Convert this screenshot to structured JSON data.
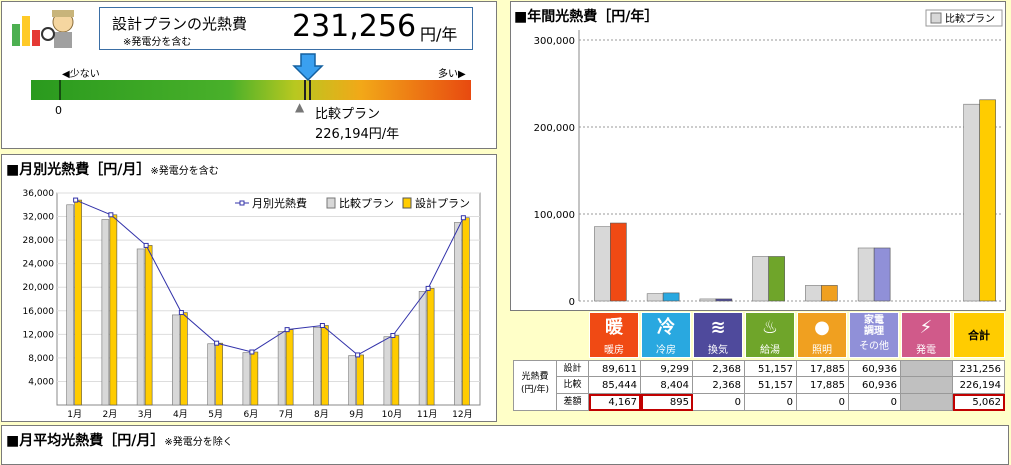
{
  "summary": {
    "title": "設計プランの光熱費",
    "note": "※発電分を含む",
    "value": "231,256",
    "unit": "円/年",
    "scale_low": "少ない",
    "scale_high": "多い",
    "scale_zero": "0",
    "compare_label": "比較プラン",
    "compare_value": "226,194円/年"
  },
  "monthly": {
    "title": "■月別光熱費［円/月］",
    "note": "※発電分を含む"
  },
  "annual": {
    "title": "■年間光熱費［円/年］",
    "legend": "比較プラン"
  },
  "avg": {
    "title": "■月平均光熱費［円/月］",
    "note": "※発電分を除く"
  },
  "table": {
    "row_group": [
      "光熱費",
      "(円/年)"
    ],
    "row_labels": [
      "設計",
      "比較",
      "差額"
    ],
    "total_header": "合計",
    "categories": [
      {
        "label": "暖房",
        "icon": "暖",
        "color": "#f04a14"
      },
      {
        "label": "冷房",
        "icon": "冷",
        "color": "#29a8e0"
      },
      {
        "label": "換気",
        "icon": "≋",
        "color": "#4f4a9c"
      },
      {
        "label": "給湯",
        "icon": "♨",
        "color": "#6fa52a"
      },
      {
        "label": "照明",
        "icon": "●",
        "color": "#f0a020"
      },
      {
        "label": "その他",
        "icon": "家電調理",
        "color": "#9090d8"
      },
      {
        "label": "発電",
        "icon": "⚡",
        "color": "#d05a8a"
      }
    ],
    "design": [
      "89,611",
      "9,299",
      "2,368",
      "51,157",
      "17,885",
      "60,936",
      "",
      "231,256"
    ],
    "compare": [
      "85,444",
      "8,404",
      "2,368",
      "51,157",
      "17,885",
      "60,936",
      "",
      "226,194"
    ],
    "diff": [
      "4,167",
      "895",
      "0",
      "0",
      "0",
      "0",
      "",
      "5,062"
    ]
  },
  "colors": {
    "design": "#ffcc00",
    "compare": "#d8d8d8",
    "line": "#3333aa"
  },
  "chart_data": [
    {
      "type": "bar",
      "title": "月別光熱費［円/月］",
      "categories": [
        "1月",
        "2月",
        "3月",
        "4月",
        "5月",
        "6月",
        "7月",
        "8月",
        "9月",
        "10月",
        "11月",
        "12月"
      ],
      "series": [
        {
          "name": "月別光熱費",
          "type": "line",
          "values": [
            34800,
            32300,
            27100,
            15700,
            10500,
            9000,
            12800,
            13500,
            8500,
            11800,
            19800,
            31800
          ]
        },
        {
          "name": "比較プラン",
          "values": [
            34000,
            31500,
            26500,
            15300,
            10400,
            8900,
            12500,
            13200,
            8400,
            11600,
            19300,
            31000
          ]
        },
        {
          "name": "設計プラン",
          "values": [
            34800,
            32300,
            27100,
            15700,
            10500,
            9000,
            12800,
            13500,
            8500,
            11800,
            19800,
            31800
          ]
        }
      ],
      "ylim": [
        0,
        36000
      ],
      "yticks": [
        "4,000",
        "8,000",
        "12,000",
        "16,000",
        "20,000",
        "24,000",
        "28,000",
        "32,000",
        "36,000"
      ],
      "legend": "top-right"
    },
    {
      "type": "bar",
      "title": "年間光熱費［円/年］",
      "categories": [
        "暖房",
        "冷房",
        "換気",
        "給湯",
        "照明",
        "その他",
        "発電",
        "合計"
      ],
      "series": [
        {
          "name": "比較プラン",
          "values": [
            85444,
            8404,
            2368,
            51157,
            17885,
            60936,
            0,
            226194
          ]
        },
        {
          "name": "設計",
          "values": [
            89611,
            9299,
            2368,
            51157,
            17885,
            60936,
            0,
            231256
          ]
        }
      ],
      "bar_colors": [
        "#f04a14",
        "#29a8e0",
        "#4f4a9c",
        "#6fa52a",
        "#f0a020",
        "#9090d8",
        "#d05a8a",
        "#ffcc00"
      ],
      "ylim": [
        0,
        300000
      ],
      "yticks": [
        "0",
        "100,000",
        "200,000",
        "300,000"
      ],
      "legend": "top-right"
    }
  ]
}
